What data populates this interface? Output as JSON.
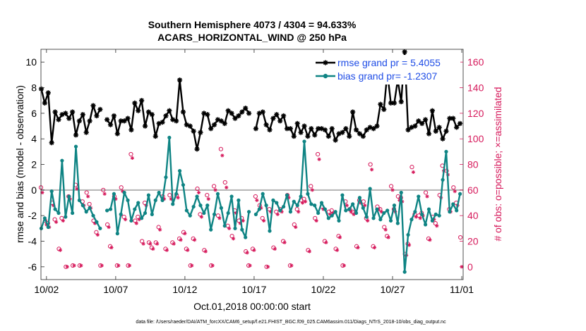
{
  "chart_data": {
    "type": "line",
    "title": "Southern Hemisphere 4073 / 4304 = 94.633%",
    "subtitle": "ACARS_HORIZONTAL_WIND @ 250 hPa",
    "xlabel": "Oct.01,2018 00:00:00 start",
    "ylabel_left": "rmse and bias (model - observation)",
    "ylabel_right": "# of obs: o=possible; ×=assimilated",
    "footnote": "data file: /Users/raeder/DAI/ATM_forcXX/CAM6_setup/f.e21.FHIST_BGC.f09_025.CAM6assim.011/Diags_NTrS_2018-10/obs_diag_output.nc",
    "x_tick_labels": [
      "10/02",
      "10/07",
      "10/12",
      "10/17",
      "10/22",
      "10/27",
      "11/01"
    ],
    "x_tick_positions": [
      2,
      7,
      12,
      17,
      22,
      27,
      32
    ],
    "xlim": [
      1.6,
      32.1
    ],
    "left_ylim": [
      -7,
      11
    ],
    "left_yticks": [
      -6,
      -4,
      -2,
      0,
      2,
      4,
      6,
      8,
      10
    ],
    "right_ylim": [
      -10,
      170
    ],
    "right_yticks": [
      0,
      20,
      40,
      60,
      80,
      100,
      120,
      140,
      160
    ],
    "zero_line": 0,
    "grid": false,
    "legend_position": "top-right",
    "colors": {
      "rmse": "#000000",
      "bias": "#0f8484",
      "obs": "#d6195b",
      "legend_text": "#1f4de6",
      "zero_line": "#b3b3b3",
      "right_axis": "#d6195b"
    },
    "series": [
      {
        "name": "rmse grand pr = 5.4055",
        "axis": "left",
        "marker": "asterisk",
        "x": [
          1.625,
          1.875,
          2.125,
          2.375,
          2.625,
          2.875,
          3.125,
          3.375,
          3.625,
          3.875,
          4.125,
          4.375,
          4.625,
          4.875,
          5.125,
          5.375,
          5.625,
          5.875,
          6.125,
          6.375,
          6.625,
          6.875,
          7.125,
          7.375,
          7.625,
          7.875,
          8.125,
          8.375,
          8.625,
          8.875,
          9.125,
          9.375,
          9.625,
          9.875,
          10.125,
          10.375,
          10.625,
          10.875,
          11.125,
          11.375,
          11.625,
          11.875,
          12.125,
          12.375,
          12.625,
          12.875,
          13.125,
          13.375,
          13.625,
          13.875,
          14.125,
          14.375,
          14.625,
          14.875,
          15.125,
          15.375,
          15.625,
          15.875,
          16.125,
          16.375,
          16.625,
          16.875,
          17.125,
          17.375,
          17.625,
          17.875,
          18.125,
          18.375,
          18.625,
          18.875,
          19.125,
          19.375,
          19.625,
          19.875,
          20.125,
          20.375,
          20.625,
          20.875,
          21.125,
          21.375,
          21.625,
          21.875,
          22.125,
          22.375,
          22.625,
          22.875,
          23.125,
          23.375,
          23.625,
          23.875,
          24.125,
          24.375,
          24.625,
          24.875,
          25.125,
          25.375,
          25.625,
          25.875,
          26.125,
          26.375,
          26.625,
          26.875,
          27.125,
          27.375,
          27.625,
          27.875,
          28.125,
          28.375,
          28.625,
          28.875,
          29.125,
          29.375,
          29.625,
          29.875,
          30.125,
          30.375,
          30.625,
          30.875,
          31.125,
          31.375,
          31.625,
          31.875
        ],
        "y": [
          7.9,
          6.8,
          7.6,
          3.7,
          6.1,
          5.5,
          5.9,
          6.0,
          5.6,
          6.1,
          4.3,
          5.4,
          5.9,
          4.5,
          5.4,
          6.6,
          5.8,
          6.3,
          null,
          5.5,
          5.1,
          5.8,
          4.4,
          5.4,
          5.4,
          5.6,
          4.7,
          6.8,
          6.2,
          7.0,
          5.0,
          6.1,
          5.9,
          4.2,
          5.2,
          5.3,
          5.8,
          6.2,
          5.5,
          5.4,
          8.6,
          6.1,
          5.1,
          5.0,
          4.6,
          3.2,
          4.5,
          6.0,
          5.9,
          4.8,
          5.1,
          5.5,
          5.4,
          5.2,
          6.2,
          6.0,
          5.6,
          5.8,
          6.1,
          6.4,
          6.0,
          null,
          4.8,
          6.0,
          6.1,
          5.1,
          4.7,
          5.6,
          5.9,
          5.4,
          5.8,
          4.8,
          4.8,
          4.2,
          5.2,
          4.5,
          5.0,
          4.2,
          4.8,
          4.3,
          4.8,
          4.8,
          4.7,
          4.2,
          4.8,
          3.9,
          4.4,
          4.5,
          4.8,
          4.2,
          6.1,
          4.7,
          4.4,
          4.2,
          4.7,
          4.9,
          4.8,
          5.0,
          6.7,
          6.3,
          9.2,
          6.8,
          6.8,
          8.6,
          6.9,
          10.8,
          4.7,
          4.9,
          5.0,
          5.4,
          5.2,
          5.5,
          4.4,
          6.2,
          4.6,
          4.9,
          4.0,
          4.6,
          5.6,
          5.6,
          4.9,
          5.2
        ]
      },
      {
        "name": "bias grand pr= -1.2307",
        "axis": "left",
        "marker": "dot",
        "x": [
          1.625,
          1.875,
          2.125,
          2.375,
          2.625,
          2.875,
          3.125,
          3.375,
          3.625,
          3.875,
          4.125,
          4.375,
          4.625,
          4.875,
          5.125,
          5.375,
          5.625,
          5.875,
          6.125,
          6.375,
          6.625,
          6.875,
          7.125,
          7.375,
          7.625,
          7.875,
          8.125,
          8.375,
          8.625,
          8.875,
          9.125,
          9.375,
          9.625,
          9.875,
          10.125,
          10.375,
          10.625,
          10.875,
          11.125,
          11.375,
          11.625,
          11.875,
          12.125,
          12.375,
          12.625,
          12.875,
          13.125,
          13.375,
          13.625,
          13.875,
          14.125,
          14.375,
          14.625,
          14.875,
          15.125,
          15.375,
          15.625,
          15.875,
          16.125,
          16.375,
          16.625,
          16.875,
          17.125,
          17.375,
          17.625,
          17.875,
          18.125,
          18.375,
          18.625,
          18.875,
          19.125,
          19.375,
          19.625,
          19.875,
          20.125,
          20.375,
          20.625,
          20.875,
          21.125,
          21.375,
          21.625,
          21.875,
          22.125,
          22.375,
          22.625,
          22.875,
          23.125,
          23.375,
          23.625,
          23.875,
          24.125,
          24.375,
          24.625,
          24.875,
          25.125,
          25.375,
          25.625,
          25.875,
          26.125,
          26.375,
          26.625,
          26.875,
          27.125,
          27.375,
          27.625,
          27.875,
          28.125,
          28.375,
          28.625,
          28.875,
          29.125,
          29.375,
          29.625,
          29.875,
          30.125,
          30.375,
          30.625,
          30.875,
          31.125,
          31.375,
          31.625,
          31.875
        ],
        "y": [
          -3.0,
          -2.2,
          -2.9,
          -0.1,
          -1.5,
          -1.8,
          2.3,
          -2.1,
          -0.5,
          -1.8,
          3.4,
          -0.8,
          -1.2,
          -1.7,
          -1.4,
          -2.0,
          -2.5,
          -3.0,
          null,
          -1.6,
          -1.5,
          -0.3,
          -3.4,
          -1.9,
          -0.2,
          -0.8,
          -2.4,
          -1.5,
          -1.0,
          -2.2,
          -1.8,
          -0.4,
          -1.9,
          -0.8,
          -0.2,
          -0.8,
          1.0,
          4.1,
          -1.1,
          -0.3,
          1.5,
          0.4,
          -1.6,
          -2.0,
          -1.3,
          -0.5,
          -1.2,
          -1.8,
          -1.2,
          -3.1,
          -1.9,
          -0.3,
          -1.4,
          -2.8,
          -1.8,
          -0.5,
          -3.0,
          -0.8,
          -3.1,
          -3.7,
          -1.7,
          null,
          -1.9,
          -1.5,
          -0.3,
          -1.2,
          -3.2,
          -0.8,
          -1.0,
          -1.6,
          -1.3,
          -0.4,
          -1.7,
          -0.9,
          -1.2,
          -0.5,
          3.8,
          -0.3,
          -1.1,
          -1.2,
          -1.8,
          -1.0,
          -1.5,
          -2.2,
          -2.0,
          -1.7,
          -2.4,
          -0.4,
          -1.6,
          -1.5,
          -1.1,
          -1.8,
          -0.6,
          -1.4,
          -2.1,
          0.1,
          -2.2,
          -1.5,
          -2.3,
          -1.8,
          -1.6,
          -2.4,
          -1.2,
          -2.6,
          -0.2,
          -6.4,
          -3.5,
          -2.3,
          -1.7,
          -0.5,
          -1.9,
          -2.7,
          -1.5,
          -2.4,
          -1.9,
          -2.0,
          0.8,
          3.0,
          -1.7,
          -1.1,
          -1.6,
          -0.3
        ]
      },
      {
        "name": "obs possible",
        "axis": "right",
        "marker": "circle",
        "x": [
          1.6,
          1.9,
          2.1,
          2.4,
          2.6,
          2.9,
          3.1,
          3.4,
          3.6,
          3.9,
          4.1,
          4.4,
          4.6,
          4.9,
          5.1,
          5.4,
          5.6,
          5.9,
          6.1,
          6.4,
          6.6,
          6.9,
          7.1,
          7.4,
          7.6,
          7.9,
          8.1,
          8.4,
          8.6,
          8.9,
          9.1,
          9.4,
          9.6,
          9.9,
          10.1,
          10.4,
          10.6,
          10.9,
          11.1,
          11.4,
          11.6,
          11.9,
          12.1,
          12.4,
          12.6,
          12.9,
          13.1,
          13.4,
          13.6,
          13.9,
          14.1,
          14.4,
          14.6,
          14.9,
          15.1,
          15.4,
          15.6,
          15.9,
          16.1,
          16.4,
          16.6,
          16.9,
          17.1,
          17.4,
          17.6,
          17.9,
          18.1,
          18.4,
          18.6,
          18.9,
          19.1,
          19.4,
          19.6,
          19.9,
          20.1,
          20.4,
          20.6,
          20.9,
          21.1,
          21.4,
          21.6,
          21.9,
          22.1,
          22.4,
          22.6,
          22.9,
          23.1,
          23.4,
          23.6,
          23.9,
          24.1,
          24.4,
          24.6,
          24.9,
          25.1,
          25.4,
          25.6,
          25.9,
          26.1,
          26.4,
          26.6,
          26.9,
          27.1,
          27.4,
          27.6,
          27.9,
          28.1,
          28.4,
          28.6,
          28.9,
          29.1,
          29.4,
          29.6,
          29.9,
          30.1,
          30.4,
          30.6,
          30.9,
          31.1,
          31.4,
          31.6,
          31.9
        ],
        "y": [
          62,
          36,
          34,
          50,
          37,
          14,
          38,
          0,
          55,
          1,
          64,
          1,
          51,
          58,
          49,
          36,
          27,
          1,
          60,
          33,
          16,
          55,
          1,
          62,
          39,
          1,
          88,
          36,
          39,
          20,
          50,
          19,
          15,
          19,
          31,
          55,
          14,
          56,
          19,
          56,
          22,
          27,
          14,
          1,
          22,
          61,
          41,
          13,
          56,
          1,
          63,
          40,
          92,
          66,
          32,
          24,
          44,
          36,
          38,
          12,
          1,
          14,
          55,
          48,
          38,
          0,
          45,
          15,
          43,
          45,
          20,
          56,
          1,
          33,
          45,
          52,
          53,
          13,
          63,
          38,
          88,
          47,
          20,
          43,
          44,
          14,
          24,
          1,
          51,
          45,
          43,
          16,
          52,
          51,
          38,
          80,
          16,
          47,
          45,
          31,
          24,
          63,
          45,
          55,
          54,
          10,
          18,
          78,
          41,
          40,
          42,
          58,
          22,
          39,
          34,
          56,
          79,
          75,
          45,
          62,
          50,
          23
        ]
      },
      {
        "name": "obs assimilated",
        "axis": "right",
        "marker": "asterisk",
        "x": [
          1.7,
          2.0,
          2.2,
          2.5,
          2.7,
          3.0,
          3.2,
          3.5,
          3.7,
          4.0,
          4.2,
          4.5,
          4.7,
          5.0,
          5.2,
          5.5,
          5.7,
          6.0,
          6.2,
          6.5,
          6.7,
          7.0,
          7.2,
          7.5,
          7.7,
          8.0,
          8.2,
          8.5,
          8.7,
          9.0,
          9.2,
          9.5,
          9.7,
          10.0,
          10.2,
          10.5,
          10.7,
          11.0,
          11.2,
          11.5,
          11.7,
          12.0,
          12.2,
          12.5,
          12.7,
          13.0,
          13.2,
          13.5,
          13.7,
          14.0,
          14.2,
          14.5,
          14.7,
          15.0,
          15.2,
          15.5,
          15.7,
          16.0,
          16.2,
          16.5,
          16.7,
          17.0,
          17.2,
          17.5,
          17.7,
          18.0,
          18.2,
          18.5,
          18.7,
          19.0,
          19.2,
          19.5,
          19.7,
          20.0,
          20.2,
          20.5,
          20.7,
          21.0,
          21.2,
          21.5,
          21.7,
          22.0,
          22.2,
          22.5,
          22.7,
          23.0,
          23.2,
          23.5,
          23.7,
          24.0,
          24.2,
          24.5,
          24.7,
          25.0,
          25.2,
          25.5,
          25.7,
          26.0,
          26.2,
          26.5,
          26.7,
          27.0,
          27.2,
          27.5,
          27.7,
          28.0,
          28.2,
          28.5,
          28.7,
          29.0,
          29.2,
          29.5,
          29.7,
          30.0,
          30.2,
          30.5,
          30.7,
          31.0,
          31.2,
          31.5,
          31.7,
          32.0
        ],
        "y": [
          58,
          33,
          31,
          48,
          35,
          13,
          36,
          0,
          53,
          1,
          61,
          1,
          48,
          55,
          46,
          34,
          25,
          1,
          57,
          31,
          15,
          53,
          1,
          59,
          37,
          1,
          85,
          34,
          37,
          18,
          48,
          18,
          14,
          18,
          29,
          53,
          13,
          53,
          18,
          54,
          21,
          26,
          13,
          1,
          21,
          58,
          39,
          12,
          53,
          1,
          60,
          38,
          87,
          62,
          30,
          22,
          42,
          34,
          36,
          11,
          1,
          13,
          52,
          46,
          36,
          0,
          43,
          14,
          41,
          43,
          19,
          54,
          1,
          31,
          43,
          50,
          51,
          12,
          60,
          36,
          84,
          45,
          19,
          41,
          42,
          13,
          23,
          1,
          48,
          43,
          41,
          15,
          50,
          48,
          36,
          76,
          15,
          45,
          43,
          29,
          23,
          60,
          43,
          52,
          51,
          9,
          17,
          74,
          39,
          38,
          40,
          55,
          21,
          37,
          32,
          54,
          75,
          72,
          43,
          59,
          48,
          0
        ]
      }
    ]
  }
}
